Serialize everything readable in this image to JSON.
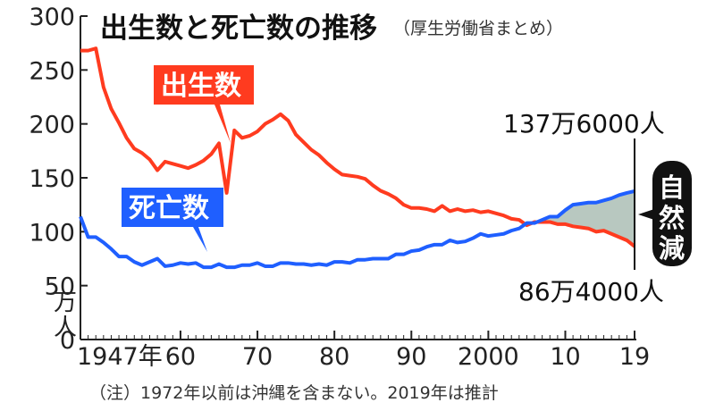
{
  "chart_data": {
    "type": "line",
    "title": "出生数と死亡数の推移",
    "subtitle": "（厚生労働省まとめ）",
    "ylabel": "万人",
    "ylim": [
      0,
      300
    ],
    "y_ticks": [
      "300",
      "250",
      "200",
      "150",
      "100",
      "50",
      "0"
    ],
    "x_ticks": [
      "1947年",
      "60",
      "70",
      "80",
      "90",
      "2000",
      "10",
      "19"
    ],
    "x_tick_years": [
      1947,
      1960,
      1970,
      1980,
      1990,
      2000,
      2010,
      2019
    ],
    "xlim": [
      1947,
      2019
    ],
    "series": [
      {
        "name": "出生数",
        "color": "#ff3b1f",
        "x": [
          1947,
          1948,
          1949,
          1950,
          1951,
          1952,
          1953,
          1954,
          1955,
          1956,
          1957,
          1958,
          1959,
          1960,
          1961,
          1962,
          1963,
          1964,
          1965,
          1966,
          1967,
          1968,
          1969,
          1970,
          1971,
          1972,
          1973,
          1974,
          1975,
          1976,
          1977,
          1978,
          1979,
          1980,
          1981,
          1982,
          1983,
          1984,
          1985,
          1986,
          1987,
          1988,
          1989,
          1990,
          1991,
          1992,
          1993,
          1994,
          1995,
          1996,
          1997,
          1998,
          1999,
          2000,
          2001,
          2002,
          2003,
          2004,
          2005,
          2006,
          2007,
          2008,
          2009,
          2010,
          2011,
          2012,
          2013,
          2014,
          2015,
          2016,
          2017,
          2018,
          2019
        ],
        "values": [
          268,
          268,
          270,
          234,
          214,
          201,
          187,
          177,
          173,
          167,
          157,
          165,
          163,
          161,
          159,
          162,
          166,
          172,
          182,
          136,
          194,
          187,
          189,
          193,
          200,
          204,
          209,
          203,
          190,
          183,
          176,
          171,
          164,
          158,
          153,
          152,
          151,
          149,
          143,
          138,
          135,
          131,
          125,
          122,
          122,
          121,
          119,
          124,
          119,
          121,
          119,
          120,
          118,
          119,
          117,
          115,
          112,
          111,
          106,
          109,
          109,
          109,
          107,
          107,
          105,
          104,
          103,
          100,
          101,
          98,
          95,
          92,
          86.4
        ]
      },
      {
        "name": "死亡数",
        "color": "#1f5fff",
        "x": [
          1947,
          1948,
          1949,
          1950,
          1951,
          1952,
          1953,
          1954,
          1955,
          1956,
          1957,
          1958,
          1959,
          1960,
          1961,
          1962,
          1963,
          1964,
          1965,
          1966,
          1967,
          1968,
          1969,
          1970,
          1971,
          1972,
          1973,
          1974,
          1975,
          1976,
          1977,
          1978,
          1979,
          1980,
          1981,
          1982,
          1983,
          1984,
          1985,
          1986,
          1987,
          1988,
          1989,
          1990,
          1991,
          1992,
          1993,
          1994,
          1995,
          1996,
          1997,
          1998,
          1999,
          2000,
          2001,
          2002,
          2003,
          2004,
          2005,
          2006,
          2007,
          2008,
          2009,
          2010,
          2011,
          2012,
          2013,
          2014,
          2015,
          2016,
          2017,
          2018,
          2019
        ],
        "values": [
          114,
          95,
          95,
          90,
          84,
          77,
          77,
          72,
          69,
          72,
          75,
          68,
          69,
          71,
          70,
          71,
          67,
          67,
          70,
          67,
          67,
          69,
          69,
          71,
          68,
          68,
          71,
          71,
          70,
          70,
          69,
          70,
          69,
          72,
          72,
          71,
          74,
          74,
          75,
          75,
          75,
          79,
          79,
          82,
          83,
          86,
          88,
          88,
          92,
          90,
          91,
          94,
          98,
          96,
          97,
          98,
          101,
          103,
          108,
          108,
          111,
          114,
          114,
          120,
          125,
          126,
          127,
          127,
          129,
          131,
          134,
          136,
          137.6
        ]
      }
    ],
    "annotations": {
      "deaths_end": "137万6000人",
      "births_end": "86万4000人",
      "natural_decrease": "自然減"
    },
    "note": "（注）1972年以前は沖縄を含まない。2019年は推計"
  }
}
